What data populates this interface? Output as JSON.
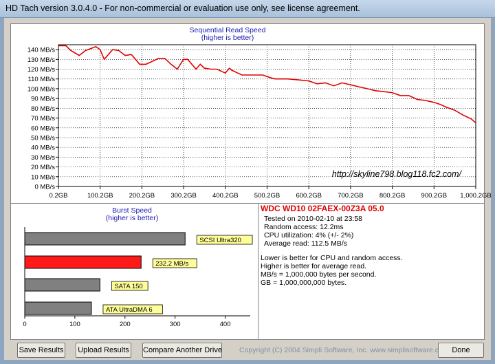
{
  "window": {
    "title": "HD Tach version 3.0.4.0  - For non-commercial or evaluation use only, see license agreement."
  },
  "seq_chart": {
    "title": "Sequential Read Speed",
    "subtitle": "(higher is better)",
    "watermark": "http://skyline798.blog118.fc2.com/",
    "line_color": "#e00000"
  },
  "burst_chart": {
    "title": "Burst Speed",
    "subtitle": "(higher is better)"
  },
  "chart_data": [
    {
      "type": "line",
      "title": "Sequential Read Speed",
      "subtitle": "(higher is better)",
      "x_unit": "GB",
      "xlim": [
        0.2,
        1000.2
      ],
      "ylim": [
        0,
        145
      ],
      "x_tick_labels": [
        "0.2GB",
        "100.2GB",
        "200.2GB",
        "300.2GB",
        "400.2GB",
        "500.2GB",
        "600.2GB",
        "700.2GB",
        "800.2GB",
        "900.2GB",
        "1,000.2GB"
      ],
      "y_tick_labels": [
        "0 MB/s",
        "10 MB/s",
        "20 MB/s",
        "30 MB/s",
        "40 MB/s",
        "50 MB/s",
        "60 MB/s",
        "70 MB/s",
        "80 MB/s",
        "90 MB/s",
        "100 MB/s",
        "110 MB/s",
        "120 MB/s",
        "130 MB/s",
        "140 MB/s"
      ],
      "grid": true,
      "series": [
        {
          "x": [
            0.2,
            18,
            30,
            50,
            65,
            90,
            100,
            110,
            130,
            145,
            160,
            175,
            195,
            210,
            240,
            255,
            270,
            285,
            300,
            310,
            330,
            340,
            350,
            365,
            380,
            400,
            410,
            415,
            430,
            440,
            460,
            490,
            510,
            520,
            530,
            550,
            575,
            600,
            620,
            640,
            660,
            680,
            700,
            720,
            740,
            760,
            780,
            800,
            820,
            840,
            860,
            880,
            900,
            915,
            930,
            950,
            970,
            990,
            1000.2
          ],
          "y": [
            144,
            144,
            139,
            134,
            139,
            143,
            140,
            130,
            140,
            139,
            134,
            135,
            125,
            125,
            131,
            131,
            125,
            120,
            130,
            130,
            120,
            125,
            121,
            120,
            120,
            116,
            121,
            119,
            116,
            114,
            114,
            114,
            111,
            110,
            110,
            110,
            109,
            108,
            105,
            106,
            103,
            106,
            104,
            102,
            100,
            98,
            97,
            96,
            93,
            93,
            89,
            88,
            86,
            84,
            81,
            78,
            73,
            69,
            65
          ]
        }
      ]
    },
    {
      "type": "bar",
      "orientation": "horizontal",
      "title": "Burst Speed",
      "subtitle": "(higher is better)",
      "xlim": [
        0,
        450
      ],
      "x_tick_labels": [
        "0",
        "100",
        "200",
        "300",
        "400"
      ],
      "categories": [
        "SCSI Ultra320",
        "232.2 MB/s",
        "SATA 150",
        "ATA UltraDMA 6"
      ],
      "values": [
        320,
        232.2,
        150,
        133
      ],
      "colors": [
        "#808080",
        "#ff1a1a",
        "#808080",
        "#808080"
      ],
      "label_bg": "#ffff99"
    }
  ],
  "info": {
    "drive_name": "WDC WD10 02FAEX-00Z3A 05.0",
    "tested_on": "Tested on 2010-02-10 at 23:58",
    "random_access": "Random access: 12.2ms",
    "cpu_utilization": "CPU utilization: 4% (+/- 2%)",
    "average_read": "Average read: 112.5 MB/s",
    "note1": "Lower is better for CPU and random access.",
    "note2": "Higher is better for average read.",
    "note3": "MB/s = 1,000,000 bytes per second.",
    "note4": "GB = 1,000,000,000 bytes."
  },
  "buttons": {
    "save": "Save Results",
    "upload": "Upload Results",
    "compare": "Compare Another Drive",
    "done": "Done"
  },
  "footer": {
    "copyright": "Copyright (C) 2004 Simpli Software, Inc. www.simplisoftware.com"
  }
}
